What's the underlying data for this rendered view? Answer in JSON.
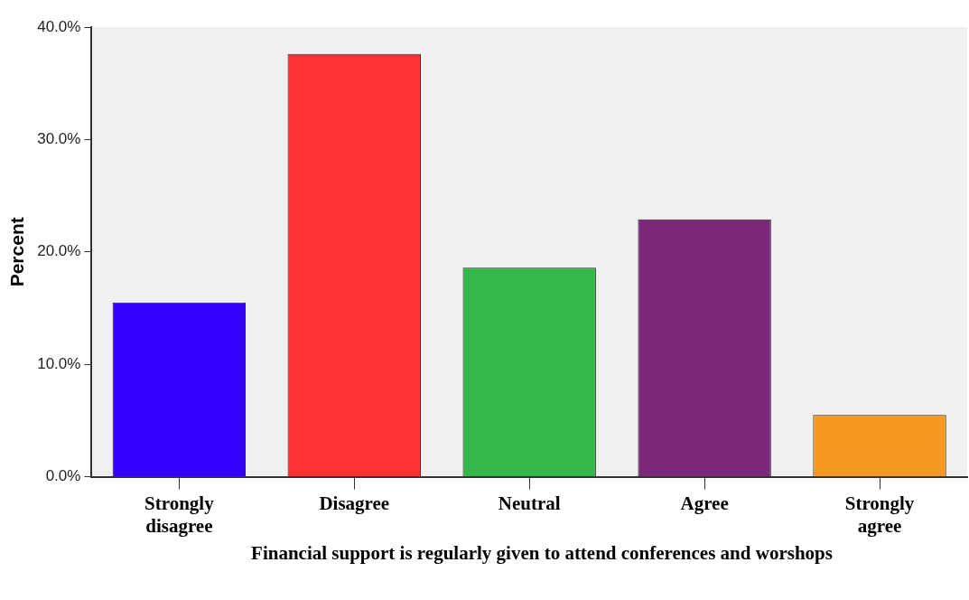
{
  "chart_data": {
    "type": "bar",
    "categories": [
      "Strongly disagree",
      "Disagree",
      "Neutral",
      "Agree",
      "Strongly agree"
    ],
    "values": [
      15.5,
      37.6,
      18.6,
      22.9,
      5.5
    ],
    "colors": [
      "#3300ff",
      "#ff3333",
      "#33b84a",
      "#7b287b",
      "#f7991f"
    ],
    "ylabel": "Percent",
    "xlabel": "Financial support is regularly given to attend conferences and worshops",
    "ylim": [
      0,
      40
    ],
    "yticks": [
      {
        "value": 0,
        "label": "0.0%"
      },
      {
        "value": 10,
        "label": "10.0%"
      },
      {
        "value": 20,
        "label": "20.0%"
      },
      {
        "value": 30,
        "label": "30.0%"
      },
      {
        "value": 40,
        "label": "40.0%"
      }
    ],
    "grid": false,
    "legend": false
  }
}
